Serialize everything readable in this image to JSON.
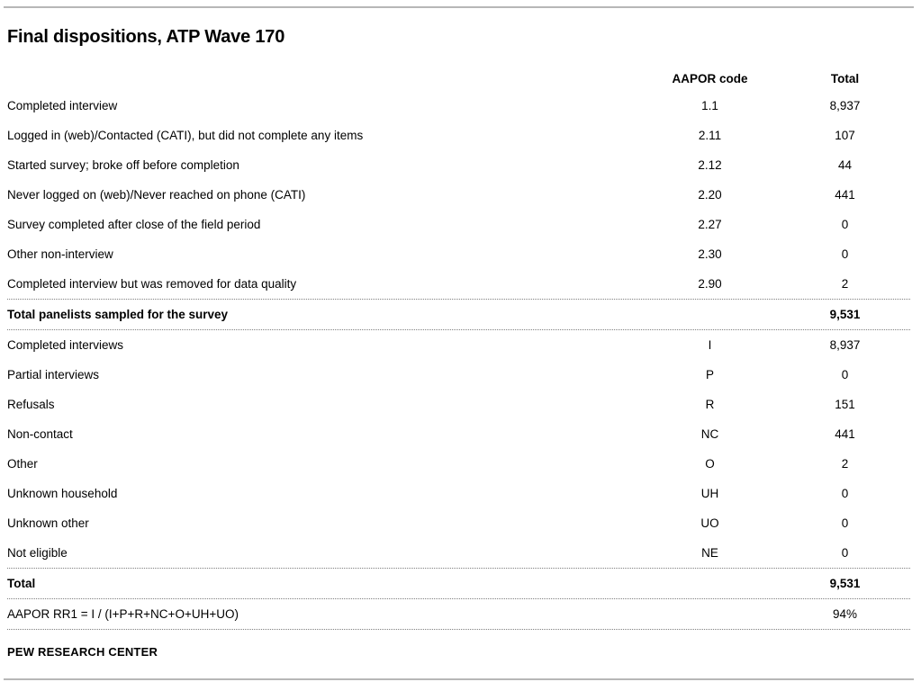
{
  "title": "Final dispositions, ATP Wave 170",
  "table": {
    "headers": {
      "label": "",
      "code": "AAPOR code",
      "total": "Total"
    },
    "section1": [
      {
        "label": "Completed interview",
        "code": "1.1",
        "total": "8,937"
      },
      {
        "label": "Logged in (web)/Contacted (CATI), but did not complete any items",
        "code": "2.11",
        "total": "107"
      },
      {
        "label": "Started survey; broke off before completion",
        "code": "2.12",
        "total": "44"
      },
      {
        "label": "Never logged on (web)/Never reached on phone (CATI)",
        "code": "2.20",
        "total": "441"
      },
      {
        "label": "Survey completed after close of the field period",
        "code": "2.27",
        "total": "0"
      },
      {
        "label": "Other non-interview",
        "code": "2.30",
        "total": "0"
      },
      {
        "label": "Completed interview but was removed for data quality",
        "code": "2.90",
        "total": "2"
      }
    ],
    "subtotal": {
      "label": "Total panelists sampled for the survey",
      "code": "",
      "total": "9,531"
    },
    "section2": [
      {
        "label": "Completed interviews",
        "code": "I",
        "total": "8,937"
      },
      {
        "label": "Partial interviews",
        "code": "P",
        "total": "0"
      },
      {
        "label": "Refusals",
        "code": "R",
        "total": "151"
      },
      {
        "label": "Non-contact",
        "code": "NC",
        "total": "441"
      },
      {
        "label": "Other",
        "code": "O",
        "total": "2"
      },
      {
        "label": "Unknown household",
        "code": "UH",
        "total": "0"
      },
      {
        "label": "Unknown other",
        "code": "UO",
        "total": "0"
      },
      {
        "label": "Not eligible",
        "code": "NE",
        "total": "0"
      }
    ],
    "grand_total": {
      "label": "Total",
      "code": "",
      "total": "9,531"
    },
    "response_rate": {
      "label": "AAPOR RR1 = I / (I+P+R+NC+O+UH+UO)",
      "code": "",
      "total": "94%"
    }
  },
  "footer": "PEW RESEARCH CENTER",
  "colors": {
    "text": "#000000",
    "solid_rule": "#b7b7b7",
    "dotted_rule": "#7f7f7f"
  }
}
